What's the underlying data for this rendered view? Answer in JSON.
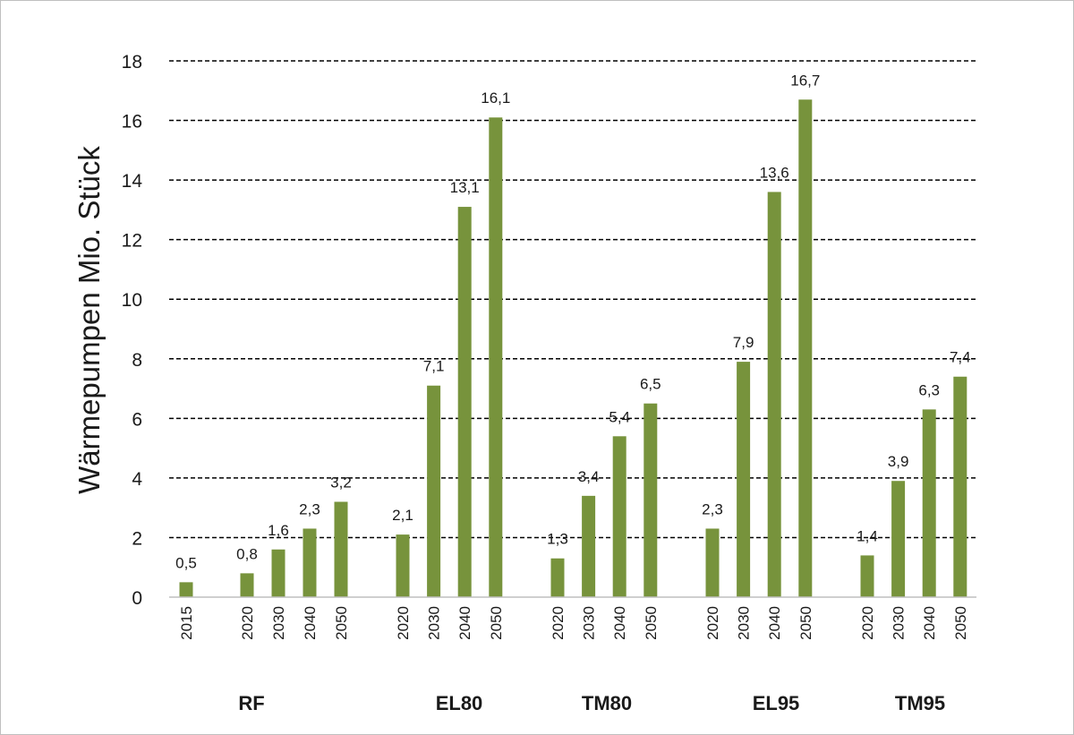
{
  "chart_data": {
    "type": "bar",
    "ylabel": "Wärmepumpen Mio. Stück",
    "ylim": [
      0,
      18
    ],
    "yticks": [
      0,
      2,
      4,
      6,
      8,
      10,
      12,
      14,
      16,
      18
    ],
    "grid": true,
    "bar_color": "#77933c",
    "groups": [
      {
        "name": "RF",
        "categories": [
          "2015",
          "2020",
          "2030",
          "2040",
          "2050"
        ],
        "values": [
          0.5,
          0.8,
          1.6,
          2.3,
          3.2
        ],
        "labels": [
          "0,5",
          "0,8",
          "1,6",
          "2,3",
          "3,2"
        ]
      },
      {
        "name": "EL80",
        "categories": [
          "2020",
          "2030",
          "2040",
          "2050"
        ],
        "values": [
          2.1,
          7.1,
          13.1,
          16.1
        ],
        "labels": [
          "2,1",
          "7,1",
          "13,1",
          "16,1"
        ]
      },
      {
        "name": "TM80",
        "categories": [
          "2020",
          "2030",
          "2040",
          "2050"
        ],
        "values": [
          1.3,
          3.4,
          5.4,
          6.5
        ],
        "labels": [
          "1,3",
          "3,4",
          "5,4",
          "6,5"
        ]
      },
      {
        "name": "EL95",
        "categories": [
          "2020",
          "2030",
          "2040",
          "2050"
        ],
        "values": [
          2.3,
          7.9,
          13.6,
          16.7
        ],
        "labels": [
          "2,3",
          "7,9",
          "13,6",
          "16,7"
        ]
      },
      {
        "name": "TM95",
        "categories": [
          "2020",
          "2030",
          "2040",
          "2050"
        ],
        "values": [
          1.4,
          3.9,
          6.3,
          7.4
        ],
        "labels": [
          "1,4",
          "3,9",
          "6,3",
          "7,4"
        ]
      }
    ]
  }
}
